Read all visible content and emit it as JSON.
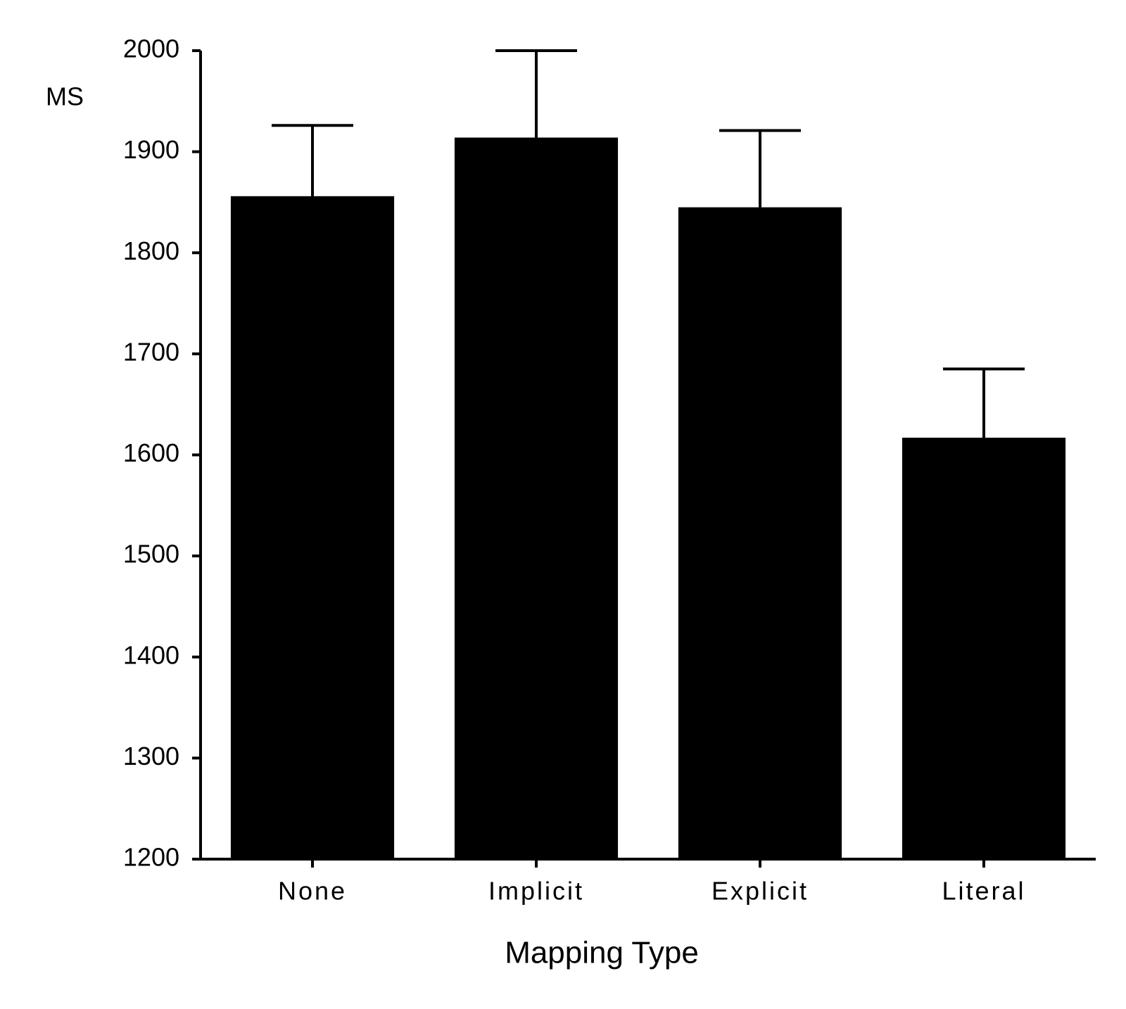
{
  "chart_data": {
    "type": "bar",
    "y_label": "MS",
    "x_label": "Mapping Type",
    "categories": [
      "None",
      "Implicit",
      "Explicit",
      "Literal"
    ],
    "values": [
      1856,
      1914,
      1845,
      1617
    ],
    "errors": [
      70,
      86,
      76,
      68
    ],
    "color": "#000000",
    "ylim": [
      1200,
      2000
    ],
    "yticks": [
      1200,
      1300,
      1400,
      1500,
      1600,
      1700,
      1800,
      1900,
      2000
    ]
  }
}
